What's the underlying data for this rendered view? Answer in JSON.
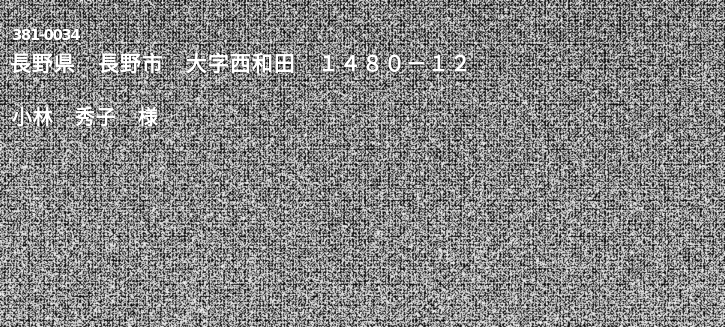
{
  "envelope": {
    "postal_code": "381-0034",
    "address": "長野県　長野市　大字西和田　１４８０－１２",
    "recipient": "小林　秀子　様"
  },
  "colors": {
    "background": "#0d0d0d",
    "text": "#ffffff"
  }
}
